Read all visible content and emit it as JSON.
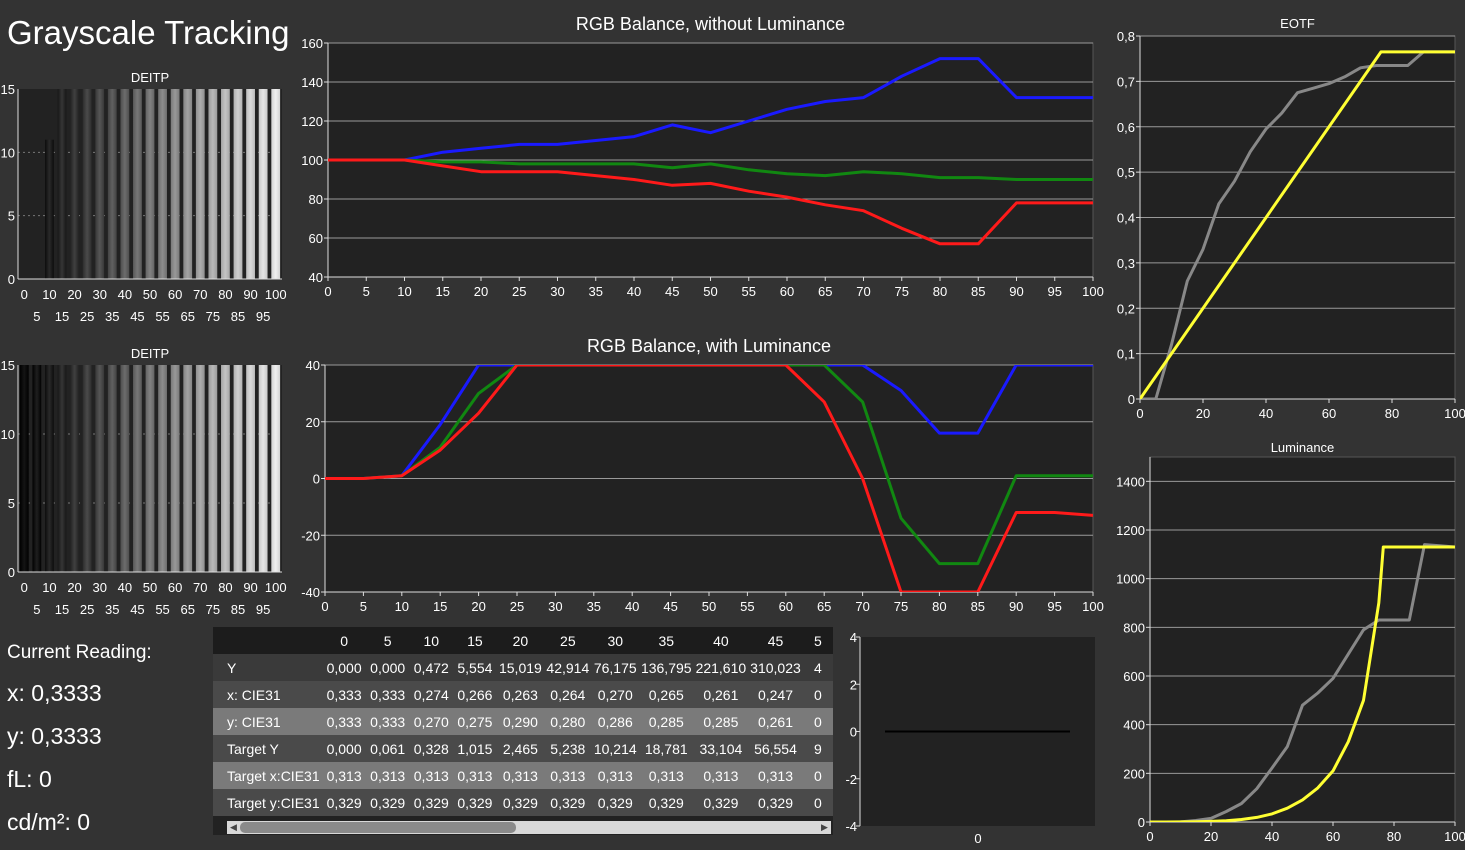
{
  "page": {
    "title": "Grayscale Tracking",
    "reading_label": "Current Reading:",
    "x_reading": "x: 0,3333",
    "y_reading": "y: 0,3333",
    "fl_reading": "fL: 0",
    "cdm2_reading": "cd/m²: 0"
  },
  "colors": {
    "background": "#333333",
    "plot": "#222222",
    "red": "#ff1a1a",
    "green": "#118811",
    "blue": "#1a1aff",
    "yellow": "#ffff33",
    "gray": "#888888"
  },
  "chart_data": [
    {
      "id": "deitp_1",
      "type": "bar",
      "title": "DEITP",
      "categories": [
        0,
        5,
        10,
        15,
        20,
        25,
        30,
        35,
        40,
        45,
        50,
        55,
        60,
        65,
        70,
        75,
        80,
        85,
        90,
        95,
        100
      ],
      "values": [
        0,
        0,
        11,
        15,
        15,
        15,
        15,
        15,
        15,
        15,
        15,
        15,
        15,
        15,
        15,
        15,
        15,
        15,
        15,
        15,
        15
      ],
      "ylim": [
        0,
        15
      ],
      "yticks": [
        0,
        5,
        10,
        15
      ],
      "xticks_row1": [
        "0",
        "10",
        "20",
        "30",
        "40",
        "50",
        "60",
        "70",
        "80",
        "90",
        "100"
      ],
      "xticks_row2": [
        "5",
        "15",
        "25",
        "35",
        "45",
        "55",
        "65",
        "75",
        "85",
        "95"
      ]
    },
    {
      "id": "rgb_without",
      "type": "line",
      "title": "RGB Balance, without Luminance",
      "x": [
        0,
        5,
        10,
        15,
        20,
        25,
        30,
        35,
        40,
        45,
        50,
        55,
        60,
        65,
        70,
        75,
        80,
        85,
        90,
        95,
        100
      ],
      "xlim": [
        0,
        100
      ],
      "ylim": [
        40,
        160
      ],
      "xticks": [
        0,
        5,
        10,
        15,
        20,
        25,
        30,
        35,
        40,
        45,
        50,
        55,
        60,
        65,
        70,
        75,
        80,
        85,
        90,
        95,
        100
      ],
      "yticks": [
        40,
        60,
        80,
        100,
        120,
        140,
        160
      ],
      "series": [
        {
          "color": "#1a1aff",
          "values": [
            100,
            100,
            100,
            104,
            106,
            108,
            108,
            110,
            112,
            118,
            114,
            120,
            126,
            130,
            132,
            143,
            152,
            152,
            132,
            132,
            132
          ]
        },
        {
          "color": "#118811",
          "values": [
            100,
            100,
            100,
            99,
            99,
            98,
            98,
            98,
            98,
            96,
            98,
            95,
            93,
            92,
            94,
            93,
            91,
            91,
            90,
            90,
            90
          ]
        },
        {
          "color": "#ff1a1a",
          "values": [
            100,
            100,
            100,
            97,
            94,
            94,
            94,
            92,
            90,
            87,
            88,
            84,
            81,
            77,
            74,
            65,
            57,
            57,
            78,
            78,
            78
          ]
        }
      ]
    },
    {
      "id": "eotf",
      "type": "line",
      "title": "EOTF",
      "xlim": [
        0,
        100
      ],
      "ylim": [
        0,
        0.8
      ],
      "xticks": [
        "0",
        "20",
        "40",
        "60",
        "80",
        "100"
      ],
      "yticks": [
        "0",
        "0,1",
        "0,2",
        "0,3",
        "0,4",
        "0,5",
        "0,6",
        "0,7",
        "0,8"
      ],
      "series": [
        {
          "color": "#888888",
          "x": [
            0,
            5,
            10,
            15,
            20,
            25,
            30,
            35,
            40,
            45,
            50,
            55,
            60,
            65,
            70,
            75,
            80,
            85,
            90,
            95,
            100
          ],
          "y": [
            0,
            0,
            0.12,
            0.26,
            0.33,
            0.43,
            0.48,
            0.545,
            0.595,
            0.63,
            0.675,
            0.685,
            0.695,
            0.71,
            0.73,
            0.735,
            0.735,
            0.735,
            0.765,
            0.765,
            0.765
          ]
        },
        {
          "color": "#ffff33",
          "x": [
            0,
            76.5,
            100
          ],
          "y": [
            0,
            0.765,
            0.765
          ]
        }
      ]
    },
    {
      "id": "deitp_2",
      "type": "bar",
      "title": "DEITP",
      "categories": [
        0,
        5,
        10,
        15,
        20,
        25,
        30,
        35,
        40,
        45,
        50,
        55,
        60,
        65,
        70,
        75,
        80,
        85,
        90,
        95,
        100
      ],
      "values": [
        15,
        15,
        15,
        15,
        15,
        15,
        15,
        15,
        15,
        15,
        15,
        15,
        15,
        15,
        15,
        15,
        15,
        15,
        15,
        15,
        15
      ],
      "ylim": [
        0,
        15
      ],
      "yticks": [
        0,
        5,
        10,
        15
      ],
      "xticks_row1": [
        "0",
        "10",
        "20",
        "30",
        "40",
        "50",
        "60",
        "70",
        "80",
        "90",
        "100"
      ],
      "xticks_row2": [
        "5",
        "15",
        "25",
        "35",
        "45",
        "55",
        "65",
        "75",
        "85",
        "95"
      ]
    },
    {
      "id": "rgb_with",
      "type": "line",
      "title": "RGB Balance, with Luminance",
      "x": [
        0,
        5,
        10,
        15,
        20,
        25,
        30,
        35,
        40,
        45,
        50,
        55,
        60,
        65,
        70,
        75,
        80,
        85,
        90,
        95,
        100
      ],
      "xlim": [
        0,
        100
      ],
      "ylim": [
        -40,
        40
      ],
      "xticks": [
        0,
        5,
        10,
        15,
        20,
        25,
        30,
        35,
        40,
        45,
        50,
        55,
        60,
        65,
        70,
        75,
        80,
        85,
        90,
        95,
        100
      ],
      "yticks": [
        -40,
        -20,
        0,
        20,
        40
      ],
      "series": [
        {
          "color": "#1a1aff",
          "values": [
            0,
            0,
            1,
            19,
            40,
            40,
            40,
            40,
            40,
            40,
            40,
            40,
            40,
            40,
            40,
            31,
            16,
            16,
            40,
            40,
            40
          ]
        },
        {
          "color": "#118811",
          "values": [
            0,
            0,
            1,
            11,
            30,
            40,
            40,
            40,
            40,
            40,
            40,
            40,
            40,
            40,
            27,
            -14,
            -30,
            -30,
            1,
            1,
            1
          ]
        },
        {
          "color": "#ff1a1a",
          "values": [
            0,
            0,
            1,
            10,
            23,
            40,
            40,
            40,
            40,
            40,
            40,
            40,
            40,
            27,
            0,
            -40,
            -40,
            -40,
            -12,
            -12,
            -13
          ]
        }
      ]
    },
    {
      "id": "luminance",
      "type": "line",
      "title": "Luminance",
      "xlim": [
        0,
        100
      ],
      "ylim": [
        0,
        1500
      ],
      "xticks": [
        "0",
        "20",
        "40",
        "60",
        "80",
        "100"
      ],
      "yticks": [
        "0",
        "200",
        "400",
        "600",
        "800",
        "1000",
        "1200",
        "1400"
      ],
      "series": [
        {
          "color": "#888888",
          "x": [
            0,
            5,
            10,
            15,
            20,
            25,
            30,
            35,
            40,
            45,
            50,
            55,
            60,
            65,
            70,
            75,
            80,
            85,
            90,
            95,
            100
          ],
          "y": [
            0,
            0,
            0.5,
            6,
            15,
            43,
            76,
            137,
            222,
            310,
            480,
            530,
            590,
            690,
            790,
            830,
            830,
            830,
            1140,
            1135,
            1130
          ]
        },
        {
          "color": "#ffff33",
          "x": [
            0,
            5,
            10,
            15,
            20,
            25,
            30,
            35,
            40,
            45,
            50,
            55,
            60,
            65,
            70,
            75,
            76.5,
            80,
            85,
            90,
            95,
            100
          ],
          "y": [
            0,
            0.06,
            0.33,
            1,
            2.5,
            5.2,
            10.2,
            18.8,
            33.1,
            56.6,
            91,
            140,
            210,
            330,
            500,
            900,
            1130,
            1130,
            1130,
            1130,
            1130,
            1130
          ]
        }
      ]
    },
    {
      "id": "small_plot",
      "type": "line",
      "xticks": [
        "0"
      ],
      "yticks": [
        "-4",
        "-2",
        "0",
        "2",
        "4"
      ],
      "ylim": [
        -4,
        4
      ],
      "series": [
        {
          "color": "#000000",
          "x": [
            0,
            1
          ],
          "y": [
            0,
            0
          ]
        }
      ]
    },
    {
      "id": "data_table",
      "type": "table",
      "columns": [
        "0",
        "5",
        "10",
        "15",
        "20",
        "25",
        "30",
        "35",
        "40",
        "45",
        "5"
      ],
      "rows": [
        {
          "label": "Y",
          "values": [
            "0,000",
            "0,000",
            "0,472",
            "5,554",
            "15,019",
            "42,914",
            "76,175",
            "136,795",
            "221,610",
            "310,023",
            "4"
          ]
        },
        {
          "label": "x: CIE31",
          "values": [
            "0,333",
            "0,333",
            "0,274",
            "0,266",
            "0,263",
            "0,264",
            "0,270",
            "0,265",
            "0,261",
            "0,247",
            "0"
          ]
        },
        {
          "label": "y: CIE31",
          "values": [
            "0,333",
            "0,333",
            "0,270",
            "0,275",
            "0,290",
            "0,280",
            "0,286",
            "0,285",
            "0,285",
            "0,261",
            "0"
          ]
        },
        {
          "label": "Target Y",
          "values": [
            "0,000",
            "0,061",
            "0,328",
            "1,015",
            "2,465",
            "5,238",
            "10,214",
            "18,781",
            "33,104",
            "56,554",
            "9"
          ]
        },
        {
          "label": "Target x:CIE31",
          "values": [
            "0,313",
            "0,313",
            "0,313",
            "0,313",
            "0,313",
            "0,313",
            "0,313",
            "0,313",
            "0,313",
            "0,313",
            "0"
          ]
        },
        {
          "label": "Target y:CIE31",
          "values": [
            "0,329",
            "0,329",
            "0,329",
            "0,329",
            "0,329",
            "0,329",
            "0,329",
            "0,329",
            "0,329",
            "0,329",
            "0"
          ]
        }
      ]
    }
  ]
}
